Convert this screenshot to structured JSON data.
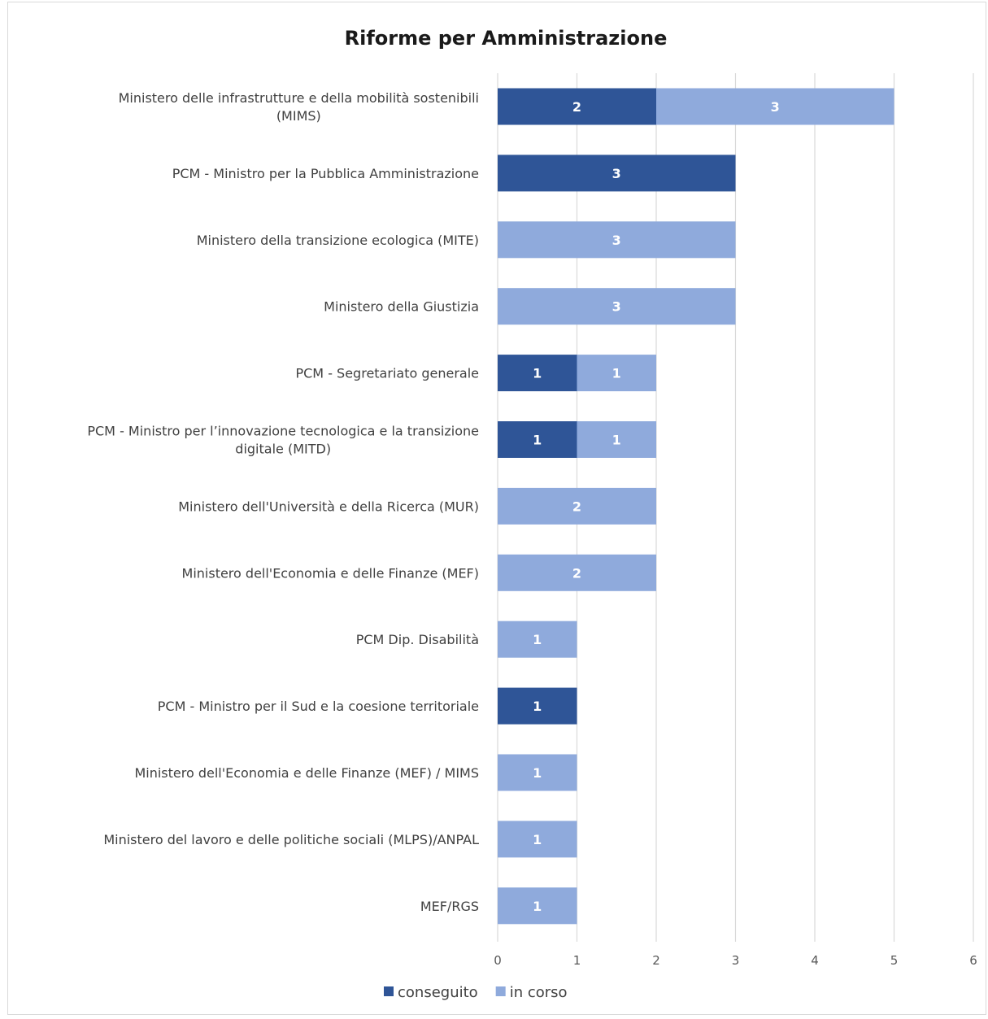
{
  "chart_data": {
    "type": "bar",
    "orientation": "horizontal",
    "stacked": true,
    "title": "Riforme per Amministrazione",
    "categories": [
      [
        "Ministero delle infrastrutture e della mobilità sostenibili",
        "(MIMS)"
      ],
      [
        "PCM - Ministro per la Pubblica Amministrazione"
      ],
      [
        "Ministero della transizione ecologica (MITE)"
      ],
      [
        "Ministero della Giustizia"
      ],
      [
        "PCM - Segretariato generale"
      ],
      [
        "PCM - Ministro per l’innovazione tecnologica e la transizione",
        "digitale (MITD)"
      ],
      [
        "Ministero dell'Università e della Ricerca (MUR)"
      ],
      [
        "Ministero dell'Economia e delle Finanze (MEF)"
      ],
      [
        "PCM Dip. Disabilità"
      ],
      [
        "PCM - Ministro per il Sud e la coesione territoriale"
      ],
      [
        "Ministero dell'Economia e delle Finanze (MEF) / MIMS"
      ],
      [
        "Ministero del lavoro e delle politiche sociali (MLPS)/ANPAL"
      ],
      [
        "MEF/RGS"
      ]
    ],
    "series": [
      {
        "name": "conseguito",
        "color": "#2f5597",
        "values": [
          2,
          3,
          0,
          0,
          1,
          1,
          0,
          0,
          0,
          1,
          0,
          0,
          0
        ]
      },
      {
        "name": "in corso",
        "color": "#8faadc",
        "values": [
          3,
          0,
          3,
          3,
          1,
          1,
          2,
          2,
          1,
          0,
          1,
          1,
          1
        ]
      }
    ],
    "xlim": [
      0,
      6
    ],
    "xticks": [
      "0",
      "1",
      "2",
      "3",
      "4",
      "5",
      "6"
    ],
    "grid": true,
    "legend_position": "bottom"
  }
}
